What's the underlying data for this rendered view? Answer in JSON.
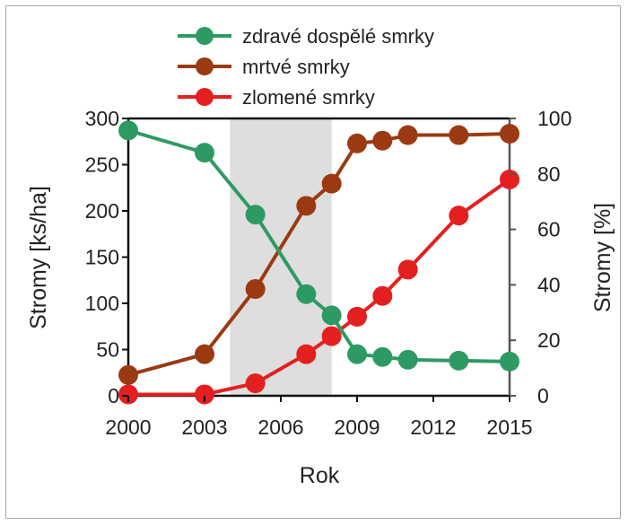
{
  "chart_data": {
    "type": "line",
    "xlabel": "Rok",
    "ylabel_left": "Stromy [ks/ha]",
    "ylabel_right": "Stromy [%]",
    "xlim": [
      2000,
      2015
    ],
    "ylim_left": [
      0,
      300
    ],
    "ylim_right": [
      0,
      100
    ],
    "x_ticks": [
      "2000",
      "2003",
      "2006",
      "2009",
      "2012",
      "2015"
    ],
    "y_ticks_left": [
      "0",
      "50",
      "100",
      "150",
      "200",
      "250",
      "300"
    ],
    "y_ticks_right": [
      "0",
      "20",
      "40",
      "60",
      "80",
      "100"
    ],
    "grid": false,
    "legend_position": "top-center",
    "shaded_region": {
      "x_start": 2004,
      "x_end": 2008,
      "color": "#dedede"
    },
    "series": [
      {
        "name": "zdravé dospělé smrky",
        "axis": "left",
        "color": "#2e9a63",
        "x": [
          2000,
          2003,
          2005,
          2007,
          2008,
          2009,
          2010,
          2011,
          2013,
          2015
        ],
        "values": [
          287,
          263,
          196,
          110,
          87,
          45,
          42,
          39,
          38,
          37
        ]
      },
      {
        "name": "mrtvé smrky",
        "axis": "right",
        "color": "#9b3a12",
        "x": [
          2000,
          2003,
          2005,
          2007,
          2008,
          2009,
          2010,
          2011,
          2013,
          2015
        ],
        "values": [
          7.5,
          15,
          38.5,
          68.5,
          76.5,
          91,
          92,
          94,
          94,
          94.5
        ]
      },
      {
        "name": "zlomené smrky",
        "axis": "right",
        "color": "#e41f1f",
        "x": [
          2000,
          2003,
          2005,
          2007,
          2008,
          2009,
          2010,
          2011,
          2013,
          2015
        ],
        "values": [
          0.5,
          0.5,
          4.5,
          15,
          21.5,
          28.5,
          36,
          45.5,
          65,
          78
        ]
      }
    ]
  }
}
